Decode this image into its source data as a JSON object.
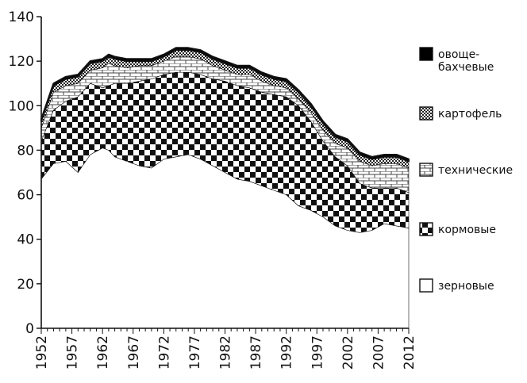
{
  "chart_data": {
    "type": "area",
    "stacked": true,
    "title": "",
    "xlabel": "",
    "ylabel": "",
    "x": [
      1952,
      1954,
      1956,
      1958,
      1960,
      1962,
      1963,
      1964,
      1966,
      1968,
      1970,
      1972,
      1974,
      1976,
      1978,
      1980,
      1982,
      1984,
      1986,
      1988,
      1990,
      1992,
      1994,
      1996,
      1998,
      2000,
      2002,
      2004,
      2006,
      2008,
      2010,
      2012
    ],
    "ylim": [
      0,
      140
    ],
    "y_ticks": [
      0,
      20,
      40,
      60,
      80,
      100,
      120,
      140
    ],
    "x_tick_labels": [
      "1952",
      "1957",
      "1962",
      "1967",
      "1972",
      "1977",
      "1982",
      "1987",
      "1992",
      "1997",
      "2002",
      "2007",
      "2012"
    ],
    "grid": false,
    "legend_position": "right",
    "series": [
      {
        "name": "зерновые",
        "color": "#ffffff",
        "values": [
          67,
          74,
          75,
          70,
          78,
          81,
          80,
          77,
          75,
          73,
          72,
          76,
          77,
          78,
          76,
          73,
          70,
          67,
          66,
          64,
          62,
          60,
          55,
          53,
          50,
          46,
          44,
          43,
          44,
          47,
          46,
          45
        ]
      },
      {
        "name": "кормовые",
        "color": "#111111",
        "values": [
          17,
          24,
          27,
          34,
          32,
          27,
          29,
          33,
          35,
          38,
          40,
          38,
          38,
          37,
          38,
          39,
          41,
          42,
          42,
          42,
          43,
          44,
          45,
          40,
          34,
          31,
          29,
          22,
          19,
          16,
          17,
          16
        ]
      },
      {
        "name": "технические",
        "color": "#bbbbbb",
        "values": [
          6,
          8,
          7,
          6,
          6,
          9,
          10,
          8,
          7,
          7,
          6,
          6,
          7,
          7,
          7,
          6,
          5,
          5,
          6,
          5,
          4,
          4,
          3,
          4,
          5,
          6,
          8,
          10,
          10,
          11,
          11,
          11
        ]
      },
      {
        "name": "картофель",
        "color": "#777777",
        "values": [
          3,
          3,
          3,
          3,
          3,
          3,
          3,
          3,
          3,
          2,
          2,
          2,
          3,
          3,
          3,
          3,
          3,
          3,
          3,
          3,
          3,
          3,
          3,
          3,
          3,
          3,
          3,
          3,
          3,
          3,
          3,
          3
        ]
      },
      {
        "name": "овоще-бахчевые",
        "color": "#000000",
        "values": [
          1,
          1,
          1,
          1,
          1,
          1,
          1,
          1,
          1,
          1,
          1,
          1,
          1,
          1,
          1,
          1,
          1,
          1,
          1,
          1,
          1,
          1,
          1,
          1,
          1,
          1,
          1,
          1,
          1,
          1,
          1,
          1
        ]
      }
    ],
    "legend": [
      {
        "lines": [
          "овоще-",
          "бахчевые"
        ],
        "icon": "solid-black-swatch-icon"
      },
      {
        "lines": [
          "картофель"
        ],
        "icon": "small-diamond-pattern-swatch-icon"
      },
      {
        "lines": [
          "технические"
        ],
        "icon": "brick-pattern-swatch-icon"
      },
      {
        "lines": [
          "кормовые"
        ],
        "icon": "checker-pattern-swatch-icon"
      },
      {
        "lines": [
          "зерновые"
        ],
        "icon": "empty-swatch-icon"
      }
    ]
  }
}
